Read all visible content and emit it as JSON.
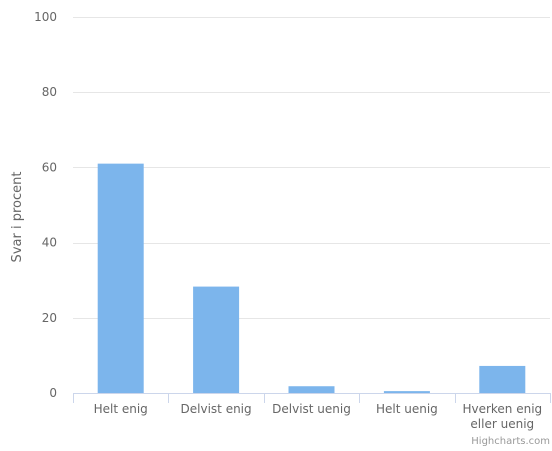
{
  "chart_data": {
    "type": "bar",
    "title": "",
    "xlabel": "",
    "ylabel": "Svar i procent",
    "ylim": [
      0,
      100
    ],
    "yticks": [
      0,
      20,
      40,
      60,
      80,
      100
    ],
    "grid": true,
    "legend": "none",
    "categories": [
      [
        "Helt enig"
      ],
      [
        "Delvist enig"
      ],
      [
        "Delvist uenig"
      ],
      [
        "Helt uenig"
      ],
      [
        "Hverken enig",
        "eller uenig"
      ]
    ],
    "values": [
      61,
      28.3,
      1.8,
      0.5,
      7.2
    ],
    "colors": {
      "bar": "#7cb5ec",
      "grid": "#e6e6e6",
      "axis": "#ccd6eb",
      "label": "#666666",
      "credit": "#999999"
    }
  },
  "credits": "Highcharts.com"
}
